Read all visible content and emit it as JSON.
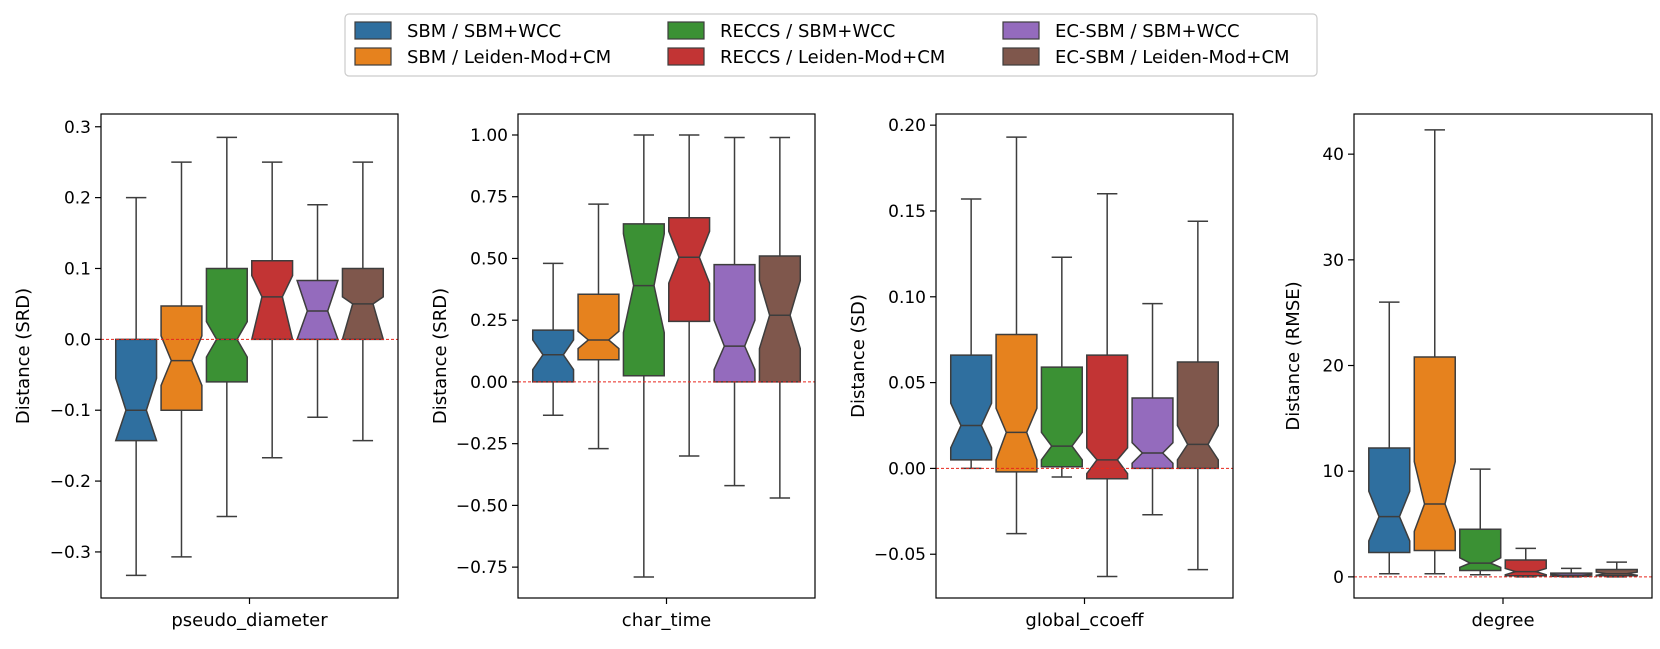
{
  "legend": [
    {
      "label": "SBM / SBM+WCC",
      "color": "#2f6f9f"
    },
    {
      "label": "SBM / Leiden-Mod+CM",
      "color": "#e6821e"
    },
    {
      "label": "RECCS / SBM+WCC",
      "color": "#3b9134"
    },
    {
      "label": "RECCS / Leiden-Mod+CM",
      "color": "#c23434"
    },
    {
      "label": "EC-SBM / SBM+WCC",
      "color": "#946bbd"
    },
    {
      "label": "EC-SBM / Leiden-Mod+CM",
      "color": "#7f574c"
    }
  ],
  "chart_data": [
    {
      "type": "box",
      "xlabel": "pseudo_diameter",
      "ylabel": "Distance (SRD)",
      "ylim": [
        -0.365,
        0.318
      ],
      "yticks": [
        -0.3,
        -0.2,
        -0.1,
        0.0,
        0.1,
        0.2,
        0.3
      ],
      "ytick_labels": [
        "−0.3",
        "−0.2",
        "−0.1",
        "0.0",
        "0.1",
        "0.2",
        "0.3"
      ],
      "zero_line": 0,
      "boxes": [
        {
          "whislo": -0.333,
          "q1": -0.143,
          "med": -0.1,
          "q3": 0.0,
          "whishi": 0.2,
          "notch_lo": -0.143,
          "notch_hi": -0.055
        },
        {
          "whislo": -0.307,
          "q1": -0.1,
          "med": -0.03,
          "q3": 0.047,
          "whishi": 0.25,
          "notch_lo": -0.065,
          "notch_hi": 0.005
        },
        {
          "whislo": -0.25,
          "q1": -0.06,
          "med": 0.0,
          "q3": 0.1,
          "whishi": 0.285,
          "notch_lo": -0.025,
          "notch_hi": 0.025
        },
        {
          "whislo": -0.167,
          "q1": 0.0,
          "med": 0.06,
          "q3": 0.111,
          "whishi": 0.25,
          "notch_lo": 0.0,
          "notch_hi": 0.09
        },
        {
          "whislo": -0.11,
          "q1": 0.0,
          "med": 0.04,
          "q3": 0.083,
          "whishi": 0.19,
          "notch_lo": 0.0,
          "notch_hi": 0.083
        },
        {
          "whislo": -0.143,
          "q1": 0.0,
          "med": 0.05,
          "q3": 0.1,
          "whishi": 0.25,
          "notch_lo": 0.0,
          "notch_hi": 0.06
        }
      ]
    },
    {
      "type": "box",
      "xlabel": "char_time",
      "ylabel": "Distance (SRD)",
      "ylim": [
        -0.875,
        1.085
      ],
      "yticks": [
        -0.75,
        -0.5,
        -0.25,
        0.0,
        0.25,
        0.5,
        0.75,
        1.0
      ],
      "ytick_labels": [
        "−0.75",
        "−0.50",
        "−0.25",
        "0.00",
        "0.25",
        "0.50",
        "0.75",
        "1.00"
      ],
      "zero_line": 0,
      "boxes": [
        {
          "whislo": -0.135,
          "q1": 0.0,
          "med": 0.11,
          "q3": 0.21,
          "whishi": 0.48,
          "notch_lo": 0.05,
          "notch_hi": 0.17
        },
        {
          "whislo": -0.27,
          "q1": 0.09,
          "med": 0.17,
          "q3": 0.355,
          "whishi": 0.72,
          "notch_lo": 0.135,
          "notch_hi": 0.205
        },
        {
          "whislo": -0.79,
          "q1": 0.025,
          "med": 0.39,
          "q3": 0.64,
          "whishi": 1.0,
          "notch_lo": 0.2,
          "notch_hi": 0.6
        },
        {
          "whislo": -0.3,
          "q1": 0.245,
          "med": 0.505,
          "q3": 0.665,
          "whishi": 1.0,
          "notch_lo": 0.4,
          "notch_hi": 0.61
        },
        {
          "whislo": -0.42,
          "q1": 0.0,
          "med": 0.145,
          "q3": 0.475,
          "whishi": 0.99,
          "notch_lo": 0.05,
          "notch_hi": 0.25
        },
        {
          "whislo": -0.47,
          "q1": 0.0,
          "med": 0.27,
          "q3": 0.51,
          "whishi": 0.99,
          "notch_lo": 0.135,
          "notch_hi": 0.41
        }
      ]
    },
    {
      "type": "box",
      "xlabel": "global_ccoeff",
      "ylabel": "Distance (SD)",
      "ylim": [
        -0.0755,
        0.2065
      ],
      "yticks": [
        -0.05,
        0.0,
        0.05,
        0.1,
        0.15,
        0.2
      ],
      "ytick_labels": [
        "−0.05",
        "0.00",
        "0.05",
        "0.10",
        "0.15",
        "0.20"
      ],
      "zero_line": 0,
      "boxes": [
        {
          "whislo": 0.0,
          "q1": 0.005,
          "med": 0.025,
          "q3": 0.066,
          "whishi": 0.157,
          "notch_lo": 0.012,
          "notch_hi": 0.038
        },
        {
          "whislo": -0.038,
          "q1": -0.002,
          "med": 0.021,
          "q3": 0.078,
          "whishi": 0.193,
          "notch_lo": 0.005,
          "notch_hi": 0.035
        },
        {
          "whislo": -0.005,
          "q1": 0.001,
          "med": 0.013,
          "q3": 0.059,
          "whishi": 0.123,
          "notch_lo": 0.005,
          "notch_hi": 0.021
        },
        {
          "whislo": -0.063,
          "q1": -0.006,
          "med": 0.005,
          "q3": 0.066,
          "whishi": 0.16,
          "notch_lo": -0.003,
          "notch_hi": 0.012
        },
        {
          "whislo": -0.027,
          "q1": 0.0,
          "med": 0.009,
          "q3": 0.041,
          "whishi": 0.096,
          "notch_lo": 0.003,
          "notch_hi": 0.015
        },
        {
          "whislo": -0.059,
          "q1": 0.0,
          "med": 0.014,
          "q3": 0.062,
          "whishi": 0.144,
          "notch_lo": 0.005,
          "notch_hi": 0.025
        }
      ]
    },
    {
      "type": "box",
      "xlabel": "degree",
      "ylabel": "Distance (RMSE)",
      "ylim": [
        -2.0,
        43.8
      ],
      "yticks": [
        0,
        10,
        20,
        30,
        40
      ],
      "ytick_labels": [
        "0",
        "10",
        "20",
        "30",
        "40"
      ],
      "zero_line": 0,
      "boxes": [
        {
          "whislo": 0.3,
          "q1": 2.3,
          "med": 5.7,
          "q3": 12.2,
          "whishi": 26.0,
          "notch_lo": 3.4,
          "notch_hi": 8.1
        },
        {
          "whislo": 0.3,
          "q1": 2.5,
          "med": 6.9,
          "q3": 20.8,
          "whishi": 42.3,
          "notch_lo": 4.3,
          "notch_hi": 10.9
        },
        {
          "whislo": 0.2,
          "q1": 0.6,
          "med": 1.3,
          "q3": 4.5,
          "whishi": 10.2,
          "notch_lo": 0.9,
          "notch_hi": 1.8
        },
        {
          "whislo": 0.0,
          "q1": 0.1,
          "med": 0.5,
          "q3": 1.6,
          "whishi": 2.7,
          "notch_lo": 0.2,
          "notch_hi": 0.8
        },
        {
          "whislo": 0.0,
          "q1": 0.05,
          "med": 0.15,
          "q3": 0.35,
          "whishi": 0.8,
          "notch_lo": 0.1,
          "notch_hi": 0.25
        },
        {
          "whislo": 0.0,
          "q1": 0.1,
          "med": 0.3,
          "q3": 0.7,
          "whishi": 1.4,
          "notch_lo": 0.15,
          "notch_hi": 0.45
        }
      ]
    }
  ]
}
